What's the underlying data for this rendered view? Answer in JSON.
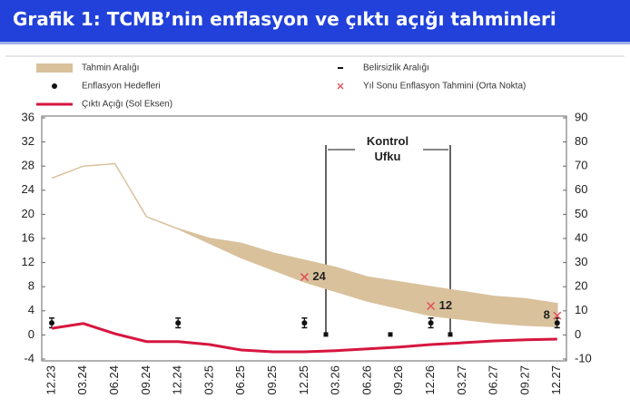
{
  "chart_data": {
    "type": "combo",
    "title": "Grafik 1: TCMB’nin enflasyon ve çıktı açığı tahminleri",
    "annotation": "Kontrol Ufku",
    "categories": [
      "12.23",
      "03.24",
      "06.24",
      "09.24",
      "12.24",
      "03.25",
      "06.25",
      "09.25",
      "12.25",
      "03.26",
      "06.26",
      "09.26",
      "12.26",
      "03.27",
      "06.27",
      "09.27",
      "12.27"
    ],
    "ylim": [
      -4,
      36
    ],
    "yticks": [
      -4,
      0,
      4,
      8,
      12,
      16,
      20,
      24,
      28,
      32,
      36
    ],
    "y2lim": [
      -10,
      90
    ],
    "y2ticks": [
      -10,
      0,
      10,
      20,
      30,
      40,
      50,
      60,
      70,
      80,
      90
    ],
    "grid": false,
    "series": [
      {
        "name": "Tahmin Aralığı",
        "type": "band",
        "axis": "y2",
        "color": "#d9c19c",
        "low": [
          65,
          70,
          71,
          49,
          44,
          38,
          32,
          27,
          22,
          18,
          14,
          11,
          8,
          6.5,
          5,
          4,
          3.5
        ],
        "high": [
          65,
          70,
          71,
          49,
          44,
          40,
          38,
          34,
          31,
          28,
          24,
          22,
          20,
          18,
          16,
          15,
          13
        ]
      },
      {
        "name": "Belirsizlik Aralığı",
        "type": "errorbar",
        "axis": "y2",
        "color": "#111111",
        "low": [
          3,
          null,
          null,
          null,
          3,
          null,
          null,
          null,
          3,
          null,
          null,
          null,
          3,
          null,
          null,
          null,
          3
        ],
        "high": [
          7,
          null,
          null,
          null,
          7,
          null,
          null,
          null,
          7,
          null,
          null,
          null,
          7,
          null,
          null,
          null,
          7
        ]
      },
      {
        "name": "Enflasyon Hedefleri",
        "type": "scatter",
        "axis": "y2",
        "color": "#111111",
        "values": [
          5,
          null,
          null,
          null,
          5,
          null,
          null,
          null,
          5,
          null,
          null,
          null,
          5,
          null,
          null,
          null,
          5
        ]
      },
      {
        "name": "Yıl Sonu Enflasyon Tahmini (Orta Nokta)",
        "type": "cross",
        "axis": "y2",
        "color": "#e0505a",
        "values": [
          null,
          null,
          null,
          null,
          null,
          null,
          null,
          null,
          24,
          null,
          null,
          null,
          12,
          null,
          null,
          null,
          8
        ]
      },
      {
        "name": "Çıktı Açığı (Sol Eksen)",
        "type": "line",
        "axis": "y",
        "color": "#d6163f",
        "values": [
          1.1,
          1.9,
          0.2,
          -1.1,
          -1.1,
          -1.6,
          -2.5,
          -2.8,
          -2.8,
          -2.6,
          -2.3,
          -2.0,
          -1.6,
          -1.3,
          -1.0,
          -0.8,
          -0.7
        ]
      }
    ]
  }
}
